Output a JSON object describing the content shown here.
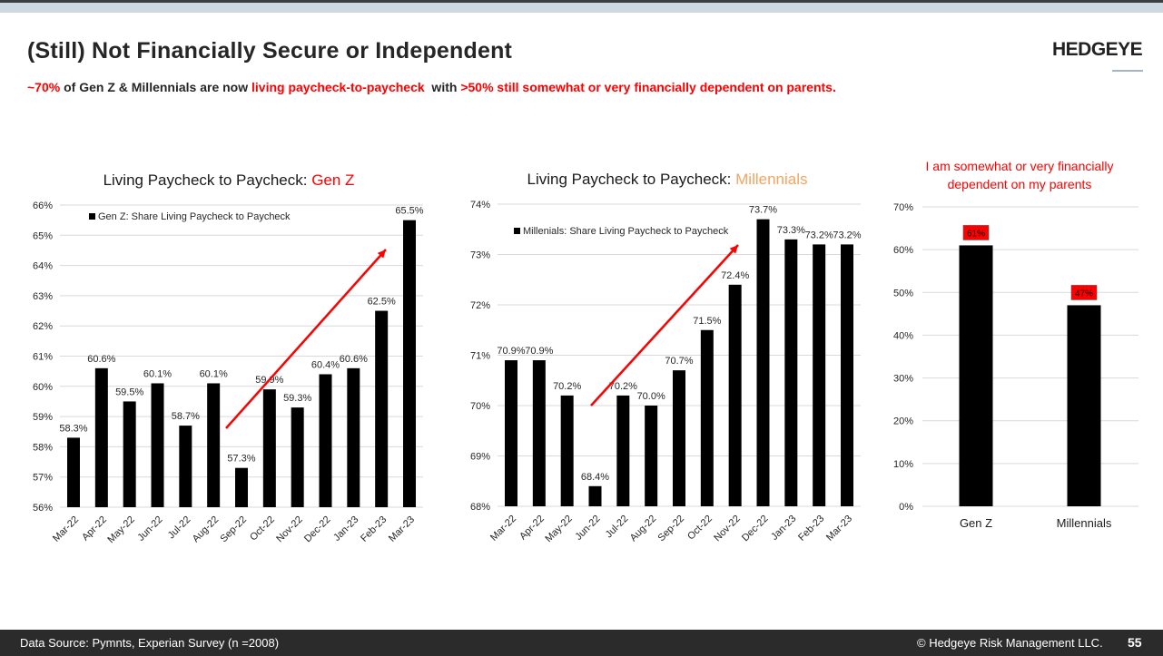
{
  "header": {
    "title": "(Still) Not Financially Secure or Independent",
    "subtitle_parts": [
      "~70%",
      " of Gen Z & Millennials are now ",
      "living paycheck-to-paycheck",
      "  with ",
      ">50% still somewhat or very financially dependent on parents."
    ],
    "logo": "HEDGEYE"
  },
  "footer": {
    "source": "Data Source: Pymnts, Experian Survey (n =2008)",
    "copyright": "© Hedgeye Risk Management LLC.",
    "page_number": "55"
  },
  "colors": {
    "accent_red": "#ff0000",
    "millennials_orange": "#f4a460",
    "bar": "#000000",
    "grid": "#d9d9d9"
  },
  "chart_data": [
    {
      "type": "bar",
      "title_prefix": "Living Paycheck to Paycheck: ",
      "title_highlight": "Gen Z",
      "legend": "Gen Z: Share Living Paycheck to Paycheck",
      "categories": [
        "Mar-22",
        "Apr-22",
        "May-22",
        "Jun-22",
        "Jul-22",
        "Aug-22",
        "Sep-22",
        "Oct-22",
        "Nov-22",
        "Dec-22",
        "Jan-23",
        "Feb-23",
        "Mar-23"
      ],
      "values": [
        58.3,
        60.6,
        59.5,
        60.1,
        58.7,
        60.1,
        57.3,
        59.9,
        59.3,
        60.4,
        60.6,
        62.5,
        65.5
      ],
      "labels": [
        "58.3%",
        "60.6%",
        "59.5%",
        "60.1%",
        "58.7%",
        "60.1%",
        "57.3%",
        "59.9%",
        "59.3%",
        "60.4%",
        "60.6%",
        "62.5%",
        "65.5%"
      ],
      "yticks": [
        "56%",
        "57%",
        "58%",
        "59%",
        "60%",
        "61%",
        "62%",
        "63%",
        "64%",
        "65%",
        "66%"
      ],
      "ylim": [
        56,
        66
      ],
      "grid": true,
      "annotation": "red upward trend arrow from Sep-22 to Feb-23"
    },
    {
      "type": "bar",
      "title_prefix": "Living Paycheck to Paycheck: ",
      "title_highlight": "Millennials",
      "legend": "Millenials: Share Living Paycheck to Paycheck",
      "categories": [
        "Mar-22",
        "Apr-22",
        "May-22",
        "Jun-22",
        "Jul-22",
        "Aug-22",
        "Sep-22",
        "Oct-22",
        "Nov-22",
        "Dec-22",
        "Jan-23",
        "Feb-23",
        "Mar-23"
      ],
      "values": [
        70.9,
        70.9,
        70.2,
        68.4,
        70.2,
        70.0,
        70.7,
        71.5,
        72.4,
        73.7,
        73.3,
        73.2,
        73.2
      ],
      "labels": [
        "70.9%",
        "70.9%",
        "70.2%",
        "68.4%",
        "70.2%",
        "70.0%",
        "70.7%",
        "71.5%",
        "72.4%",
        "73.7%",
        "73.3%",
        "73.2%",
        "73.2%"
      ],
      "yticks": [
        "68%",
        "69%",
        "70%",
        "71%",
        "72%",
        "73%",
        "74%"
      ],
      "ylim": [
        68,
        74
      ],
      "grid": true,
      "annotation": "red upward trend arrow from Jun-22 to Nov-22"
    },
    {
      "type": "bar",
      "title_lines": [
        "I am somewhat or very financially",
        "dependent on my parents"
      ],
      "categories": [
        "Gen Z",
        "Millennials"
      ],
      "values": [
        61,
        47
      ],
      "labels": [
        "61%",
        "47%"
      ],
      "yticks": [
        "0%",
        "10%",
        "20%",
        "30%",
        "40%",
        "50%",
        "60%",
        "70%"
      ],
      "ylim": [
        0,
        70
      ],
      "grid": true
    }
  ]
}
